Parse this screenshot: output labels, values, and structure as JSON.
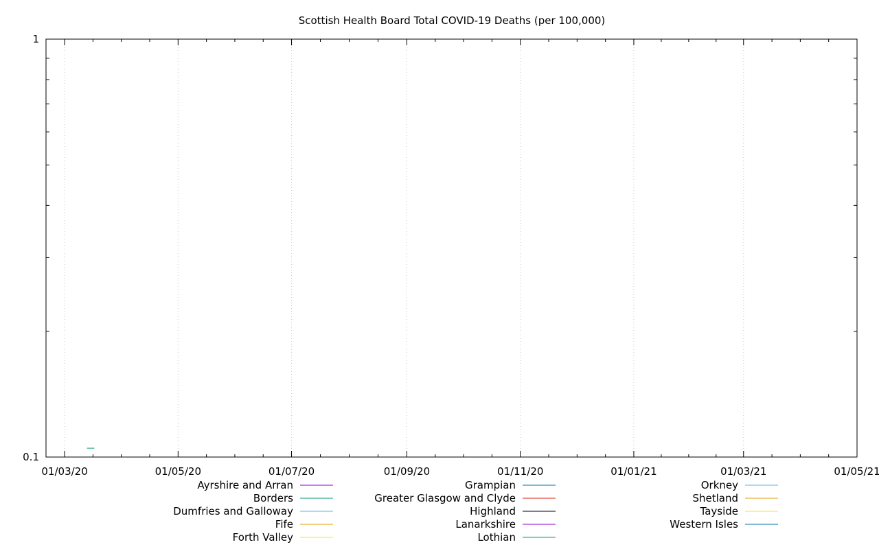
{
  "chart_data": {
    "type": "line",
    "title": "Scottish Health Board Total COVID-19 Deaths (per 100,000)",
    "xlabel": "",
    "ylabel": "",
    "y_scale": "log",
    "ylim": [
      0.1,
      1
    ],
    "xlim": [
      "2020-02-20",
      "2021-05-01"
    ],
    "x_ticks": [
      {
        "date": "2020-03-01",
        "label": "01/03/20"
      },
      {
        "date": "2020-05-01",
        "label": "01/05/20"
      },
      {
        "date": "2020-07-01",
        "label": "01/07/20"
      },
      {
        "date": "2020-09-01",
        "label": "01/09/20"
      },
      {
        "date": "2020-11-01",
        "label": "01/11/20"
      },
      {
        "date": "2021-01-01",
        "label": "01/01/21"
      },
      {
        "date": "2021-03-01",
        "label": "01/03/21"
      },
      {
        "date": "2021-05-01",
        "label": "01/05/21"
      }
    ],
    "y_ticks": [
      {
        "value": 0.1,
        "label": "0.1"
      },
      {
        "value": 1,
        "label": "1"
      }
    ],
    "grid": "vertical dotted at major x ticks",
    "legend_position": "bottom",
    "series": [
      {
        "name": "Ayrshire and Arran",
        "color": "#9400d3",
        "points": []
      },
      {
        "name": "Borders",
        "color": "#009e73",
        "points": []
      },
      {
        "name": "Dumfries and Galloway",
        "color": "#56b4e9",
        "points": []
      },
      {
        "name": "Fife",
        "color": "#e69f00",
        "points": []
      },
      {
        "name": "Forth Valley",
        "color": "#f0e442",
        "points": []
      },
      {
        "name": "Grampian",
        "color": "#0072b2",
        "points": []
      },
      {
        "name": "Greater Glasgow and Clyde",
        "color": "#e51e10",
        "points": []
      },
      {
        "name": "Highland",
        "color": "#000000",
        "points": []
      },
      {
        "name": "Lanarkshire",
        "color": "#9400d3",
        "points": []
      },
      {
        "name": "Lothian",
        "color": "#009e73",
        "points": [
          {
            "x": "2020-03-13",
            "y": 0.105
          },
          {
            "x": "2020-03-17",
            "y": 0.105
          }
        ]
      },
      {
        "name": "Orkney",
        "color": "#56b4e9",
        "points": []
      },
      {
        "name": "Shetland",
        "color": "#e69f00",
        "points": []
      },
      {
        "name": "Tayside",
        "color": "#f0e442",
        "points": []
      },
      {
        "name": "Western Isles",
        "color": "#0072b2",
        "points": []
      }
    ]
  }
}
